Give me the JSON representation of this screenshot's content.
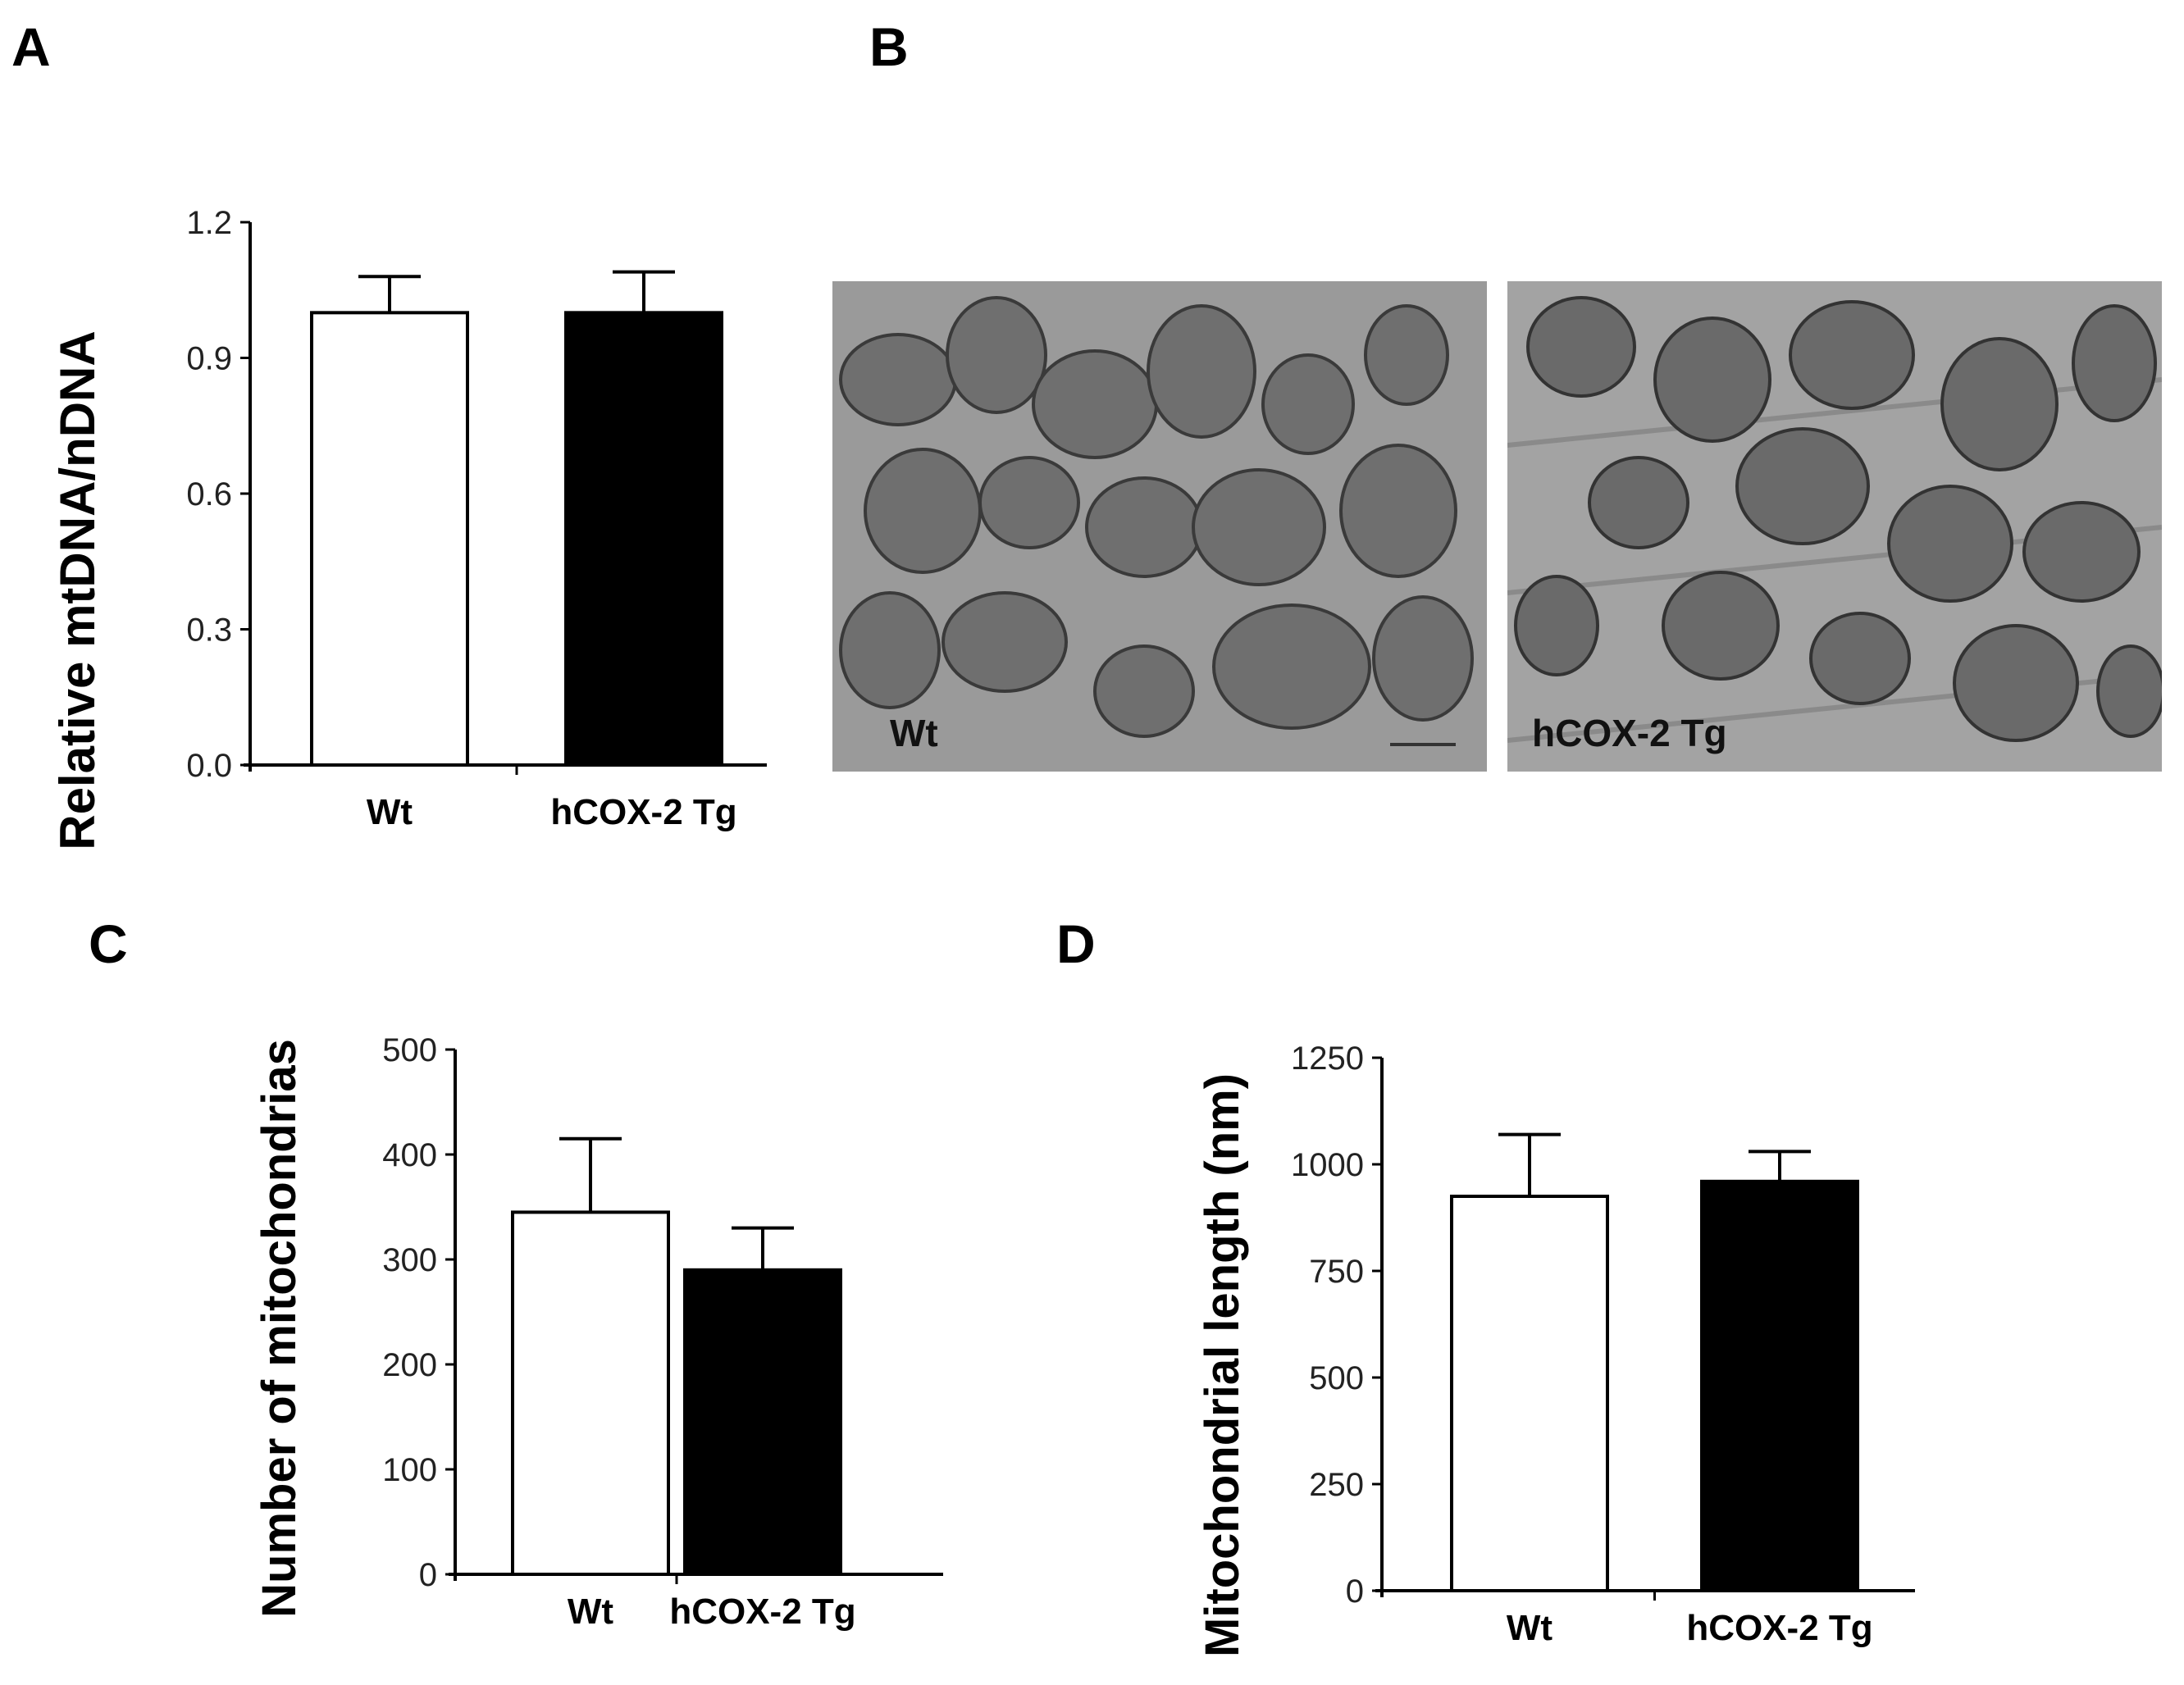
{
  "panels": {
    "a": {
      "letter": "A"
    },
    "b": {
      "letter": "B",
      "images": [
        {
          "label": "Wt"
        },
        {
          "label": "hCOX-2 Tg"
        }
      ]
    },
    "c": {
      "letter": "C"
    },
    "d": {
      "letter": "D"
    }
  },
  "colors": {
    "wt_fill": "#ffffff",
    "tg_fill": "#000000",
    "axis": "#000000"
  },
  "chart_data": [
    {
      "id": "a",
      "type": "bar",
      "categories": [
        "Wt",
        "hCOX-2 Tg"
      ],
      "values": [
        1.0,
        1.0
      ],
      "errors": [
        0.08,
        0.09
      ],
      "ylabel": "Relative mtDNA/nDNA",
      "ylim": [
        0,
        1.2
      ],
      "yticks": [
        "0.0",
        "0.3",
        "0.6",
        "0.9",
        "1.2"
      ],
      "yticks_values": [
        0,
        0.3,
        0.6,
        0.9,
        1.2
      ]
    },
    {
      "id": "c",
      "type": "bar",
      "categories": [
        "Wt",
        "hCOX-2 Tg"
      ],
      "values": [
        345,
        290
      ],
      "errors": [
        70,
        40
      ],
      "ylabel": "Number of mitochondrias",
      "ylim": [
        0,
        500
      ],
      "yticks": [
        "0",
        "100",
        "200",
        "300",
        "400",
        "500"
      ],
      "yticks_values": [
        0,
        100,
        200,
        300,
        400,
        500
      ]
    },
    {
      "id": "d",
      "type": "bar",
      "categories": [
        "Wt",
        "hCOX-2 Tg"
      ],
      "values": [
        925,
        960
      ],
      "errors": [
        145,
        70
      ],
      "ylabel": "Mitochondrial length (nm)",
      "ylim": [
        0,
        1250
      ],
      "yticks": [
        "0",
        "250",
        "500",
        "750",
        "1000",
        "1250"
      ],
      "yticks_values": [
        0,
        250,
        500,
        750,
        1000,
        1250
      ]
    }
  ]
}
